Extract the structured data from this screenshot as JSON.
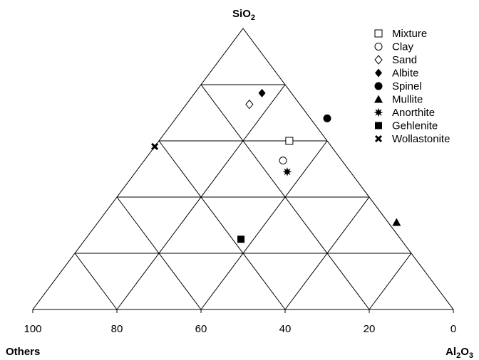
{
  "chart_data": {
    "type": "scatter",
    "subtype": "ternary",
    "vertices": {
      "top": {
        "label": "SiO",
        "sub": "2"
      },
      "bottom_left": {
        "label": "Others"
      },
      "bottom_right": {
        "label": "Al",
        "sub1": "2",
        "mid": "O",
        "sub2": "3"
      }
    },
    "bottom_axis_ticks": [
      "100",
      "80",
      "60",
      "40",
      "20",
      "0"
    ],
    "grid": true,
    "grid_step": 20,
    "legend_position": "top-right",
    "components": [
      "SiO2",
      "Al2O3",
      "Others"
    ],
    "series": [
      {
        "name": "Mixture",
        "marker": "square-open",
        "point": {
          "SiO2": 60,
          "Al2O3": 31,
          "Others": 9
        }
      },
      {
        "name": "Clay",
        "marker": "circle-open",
        "point": {
          "SiO2": 53,
          "Al2O3": 33,
          "Others": 14
        }
      },
      {
        "name": "Sand",
        "marker": "diamond-open",
        "point": {
          "SiO2": 73,
          "Al2O3": 15,
          "Others": 12
        }
      },
      {
        "name": "Albite",
        "marker": "diamond",
        "point": {
          "SiO2": 77,
          "Al2O3": 16,
          "Others": 7
        }
      },
      {
        "name": "Spinel",
        "marker": "circle",
        "point": {
          "SiO2": 68,
          "Al2O3": 36,
          "Others": -4
        }
      },
      {
        "name": "Mullite",
        "marker": "triangle",
        "point": {
          "SiO2": 31,
          "Al2O3": 71,
          "Others": -2
        }
      },
      {
        "name": "Anorthite",
        "marker": "star",
        "point": {
          "SiO2": 49,
          "Al2O3": 36,
          "Others": 15
        }
      },
      {
        "name": "Gehlenite",
        "marker": "square",
        "point": {
          "SiO2": 25,
          "Al2O3": 37,
          "Others": 38
        }
      },
      {
        "name": "Wollastonite",
        "marker": "cross",
        "point": {
          "SiO2": 58,
          "Al2O3": 0,
          "Others": 42
        }
      }
    ]
  }
}
